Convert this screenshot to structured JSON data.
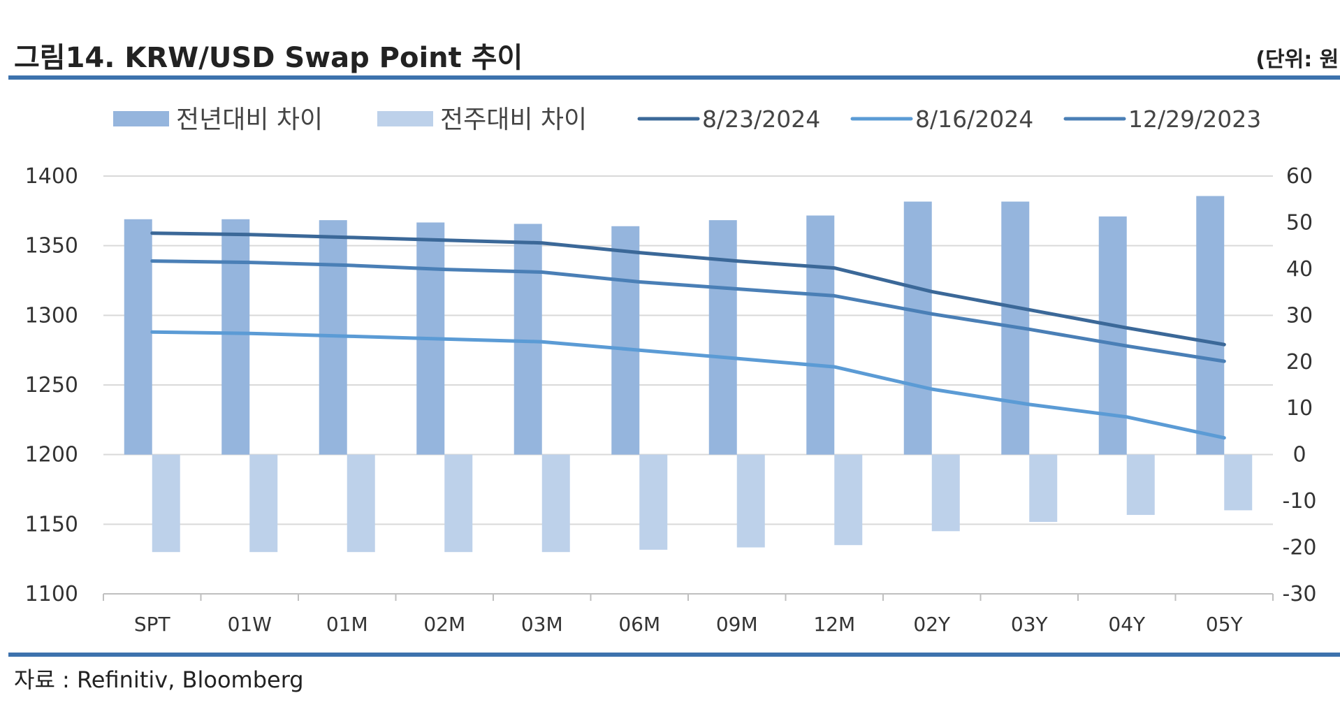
{
  "header": {
    "title": "그림14. KRW/USD Swap Point 추이",
    "unit": "(단위: 원)"
  },
  "footer": {
    "source": "자료 : Refinitiv, Bloomberg"
  },
  "colors": {
    "rule": "#3d72ad",
    "bar_yoy": "#95b5dd",
    "bar_wow": "#bdd1ea",
    "line_0823": "#3b6898",
    "line_0816": "#5b9bd5",
    "line_1229": "#4a7fb6",
    "grid": "#d9d9d9"
  },
  "chart_data": {
    "type": "bar",
    "categories": [
      "SPT",
      "01W",
      "01M",
      "02M",
      "03M",
      "06M",
      "09M",
      "12M",
      "02Y",
      "03Y",
      "04Y",
      "05Y"
    ],
    "series": [
      {
        "name": "전년대비 차이",
        "kind": "bar",
        "axis": "right",
        "color": "#95b5dd",
        "values": [
          50.7,
          50.7,
          50.5,
          50.0,
          49.7,
          49.2,
          50.5,
          51.5,
          54.5,
          54.5,
          51.3,
          55.7
        ]
      },
      {
        "name": "전주대비 차이",
        "kind": "bar",
        "axis": "right",
        "color": "#bdd1ea",
        "values": [
          -21.0,
          -21.0,
          -21.0,
          -21.0,
          -21.0,
          -20.5,
          -20.0,
          -19.5,
          -16.5,
          -14.5,
          -13.0,
          -12.0
        ]
      },
      {
        "name": "8/23/2024",
        "kind": "line",
        "axis": "left",
        "color": "#3b6898",
        "values": [
          1359,
          1358,
          1356,
          1354,
          1352,
          1345,
          1339,
          1334,
          1317,
          1304,
          1291,
          1279
        ]
      },
      {
        "name": "8/16/2024",
        "kind": "line",
        "axis": "left",
        "color": "#5b9bd5",
        "values": [
          1288,
          1287,
          1285,
          1283,
          1281,
          1275,
          1269,
          1263,
          1247,
          1236,
          1227,
          1212
        ]
      },
      {
        "name": "12/29/2023",
        "kind": "line",
        "axis": "left",
        "color": "#4a7fb6",
        "values": [
          1339,
          1338,
          1336,
          1333,
          1331,
          1324,
          1319,
          1314,
          1301,
          1290,
          1278,
          1267
        ]
      }
    ],
    "y_left": {
      "min": 1100,
      "max": 1400,
      "step": 50,
      "ticks": [
        "1100",
        "1150",
        "1200",
        "1250",
        "1300",
        "1350",
        "1400"
      ]
    },
    "y_right": {
      "min": -30,
      "max": 60,
      "step": 10,
      "ticks": [
        "-30",
        "-20",
        "-10",
        "0",
        "10",
        "20",
        "30",
        "40",
        "50",
        "60"
      ]
    },
    "grid": true,
    "legend_position": "top"
  }
}
